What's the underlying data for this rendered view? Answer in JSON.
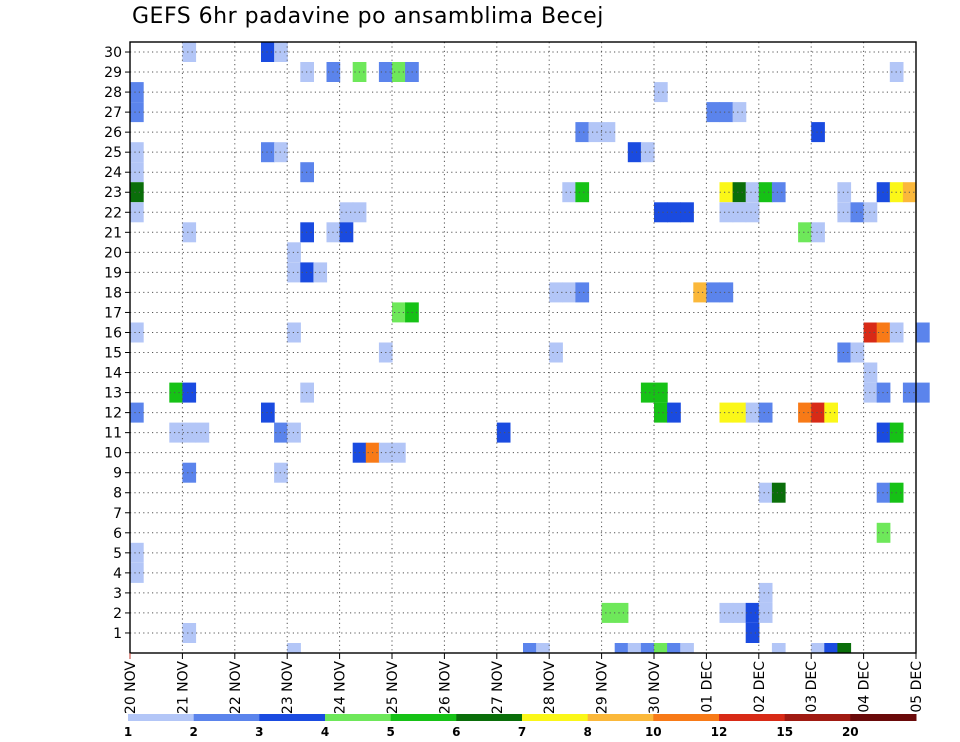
{
  "chart_data": {
    "type": "heatmap",
    "title": "GEFS 6hr padavine po ansamblima Becej",
    "xlabel": "",
    "ylabel": "",
    "x_ticks": [
      "20 NOV",
      "21 NOV",
      "22 NOV",
      "23 NOV",
      "24 NOV",
      "25 NOV",
      "26 NOV",
      "27 NOV",
      "28 NOV",
      "29 NOV",
      "30 NOV",
      "01 DEC",
      "02 DEC",
      "03 DEC",
      "04 DEC",
      "05 DEC"
    ],
    "y_ticks": [
      1,
      2,
      3,
      4,
      5,
      6,
      7,
      8,
      9,
      10,
      11,
      12,
      13,
      14,
      15,
      16,
      17,
      18,
      19,
      20,
      21,
      22,
      23,
      24,
      25,
      26,
      27,
      28,
      29,
      30
    ],
    "xlim_steps": [
      0,
      60
    ],
    "ylim": [
      0,
      30
    ],
    "grid": true,
    "colorbar": {
      "labels": [
        "1",
        "2",
        "3",
        "4",
        "5",
        "6",
        "7",
        "8",
        "10",
        "12",
        "15",
        "20"
      ],
      "colors": [
        "#b3c6f7",
        "#5b84ec",
        "#1a4be0",
        "#6ee85a",
        "#16c216",
        "#0a6e0a",
        "#fbf718",
        "#fbb83a",
        "#f87a17",
        "#d82a16",
        "#a01a12",
        "#6a0a0a"
      ]
    },
    "cells_note": "each cell: [step (6h steps from 20 NOV 00Z), member, colour level 1-12]",
    "cells": [
      [
        4,
        30,
        1
      ],
      [
        10,
        30,
        3
      ],
      [
        11,
        30,
        1
      ],
      [
        13,
        29,
        1
      ],
      [
        15,
        29,
        2
      ],
      [
        17,
        29,
        4
      ],
      [
        19,
        29,
        2
      ],
      [
        20,
        29,
        4
      ],
      [
        21,
        29,
        2
      ],
      [
        58,
        29,
        1
      ],
      [
        0,
        28,
        2
      ],
      [
        40,
        28,
        1
      ],
      [
        0,
        27,
        2
      ],
      [
        44,
        27,
        2
      ],
      [
        45,
        27,
        2
      ],
      [
        46,
        27,
        1
      ],
      [
        34,
        26,
        2
      ],
      [
        35,
        26,
        1
      ],
      [
        36,
        26,
        1
      ],
      [
        52,
        26,
        3
      ],
      [
        0,
        25,
        1
      ],
      [
        10,
        25,
        2
      ],
      [
        11,
        25,
        1
      ],
      [
        38,
        25,
        3
      ],
      [
        39,
        25,
        1
      ],
      [
        0,
        24,
        1
      ],
      [
        13,
        24,
        2
      ],
      [
        0,
        23,
        6
      ],
      [
        33,
        23,
        1
      ],
      [
        34,
        23,
        5
      ],
      [
        45,
        23,
        7
      ],
      [
        46,
        23,
        6
      ],
      [
        47,
        23,
        1
      ],
      [
        48,
        23,
        5
      ],
      [
        49,
        23,
        2
      ],
      [
        54,
        23,
        1
      ],
      [
        57,
        23,
        3
      ],
      [
        58,
        23,
        7
      ],
      [
        59,
        23,
        8
      ],
      [
        0,
        22,
        1
      ],
      [
        16,
        22,
        1
      ],
      [
        17,
        22,
        1
      ],
      [
        40,
        22,
        3
      ],
      [
        41,
        22,
        3
      ],
      [
        42,
        22,
        3
      ],
      [
        45,
        22,
        1
      ],
      [
        46,
        22,
        1
      ],
      [
        47,
        22,
        1
      ],
      [
        54,
        22,
        1
      ],
      [
        55,
        22,
        2
      ],
      [
        56,
        22,
        1
      ],
      [
        4,
        21,
        1
      ],
      [
        13,
        21,
        3
      ],
      [
        15,
        21,
        1
      ],
      [
        16,
        21,
        3
      ],
      [
        51,
        21,
        4
      ],
      [
        52,
        21,
        1
      ],
      [
        12,
        20,
        1
      ],
      [
        12,
        19,
        1
      ],
      [
        13,
        19,
        3
      ],
      [
        14,
        19,
        1
      ],
      [
        32,
        18,
        1
      ],
      [
        33,
        18,
        1
      ],
      [
        34,
        18,
        2
      ],
      [
        43,
        18,
        8
      ],
      [
        44,
        18,
        2
      ],
      [
        45,
        18,
        2
      ],
      [
        20,
        17,
        4
      ],
      [
        21,
        17,
        5
      ],
      [
        0,
        16,
        1
      ],
      [
        12,
        16,
        1
      ],
      [
        56,
        16,
        10
      ],
      [
        57,
        16,
        9
      ],
      [
        58,
        16,
        1
      ],
      [
        60,
        16,
        2
      ],
      [
        19,
        15,
        1
      ],
      [
        32,
        15,
        1
      ],
      [
        54,
        15,
        2
      ],
      [
        55,
        15,
        1
      ],
      [
        56,
        14,
        1
      ],
      [
        3,
        13,
        5
      ],
      [
        4,
        13,
        3
      ],
      [
        13,
        13,
        1
      ],
      [
        39,
        13,
        5
      ],
      [
        40,
        13,
        5
      ],
      [
        56,
        13,
        1
      ],
      [
        57,
        13,
        2
      ],
      [
        59,
        13,
        2
      ],
      [
        60,
        13,
        2
      ],
      [
        0,
        12,
        2
      ],
      [
        10,
        12,
        3
      ],
      [
        40,
        12,
        5
      ],
      [
        41,
        12,
        3
      ],
      [
        45,
        12,
        7
      ],
      [
        46,
        12,
        7
      ],
      [
        47,
        12,
        1
      ],
      [
        48,
        12,
        2
      ],
      [
        51,
        12,
        9
      ],
      [
        52,
        12,
        10
      ],
      [
        53,
        12,
        7
      ],
      [
        3,
        11,
        1
      ],
      [
        4,
        11,
        1
      ],
      [
        5,
        11,
        1
      ],
      [
        11,
        11,
        2
      ],
      [
        12,
        11,
        1
      ],
      [
        28,
        11,
        3
      ],
      [
        57,
        11,
        3
      ],
      [
        58,
        11,
        5
      ],
      [
        17,
        10,
        3
      ],
      [
        18,
        10,
        9
      ],
      [
        19,
        10,
        1
      ],
      [
        20,
        10,
        1
      ],
      [
        4,
        9,
        2
      ],
      [
        11,
        9,
        1
      ],
      [
        48,
        8,
        1
      ],
      [
        49,
        8,
        6
      ],
      [
        57,
        8,
        2
      ],
      [
        58,
        8,
        5
      ],
      [
        57,
        6,
        4
      ],
      [
        0,
        5,
        1
      ],
      [
        0,
        4,
        1
      ],
      [
        48,
        3,
        1
      ],
      [
        36,
        2,
        4
      ],
      [
        37,
        2,
        4
      ],
      [
        45,
        2,
        1
      ],
      [
        46,
        2,
        1
      ],
      [
        47,
        2,
        3
      ],
      [
        48,
        2,
        1
      ],
      [
        4,
        1,
        1
      ],
      [
        47,
        1,
        3
      ],
      [
        12,
        0,
        1
      ],
      [
        30,
        0,
        2
      ],
      [
        31,
        0,
        1
      ],
      [
        37,
        0,
        2
      ],
      [
        38,
        0,
        1
      ],
      [
        39,
        0,
        2
      ],
      [
        40,
        0,
        4
      ],
      [
        41,
        0,
        2
      ],
      [
        42,
        0,
        1
      ],
      [
        49,
        0,
        1
      ],
      [
        52,
        0,
        1
      ],
      [
        53,
        0,
        3
      ],
      [
        54,
        0,
        6
      ]
    ]
  }
}
